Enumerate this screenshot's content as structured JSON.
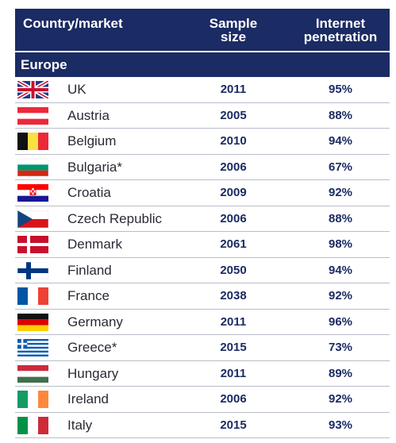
{
  "header": {
    "country_label": "Country/market",
    "sample_label_line1": "Sample",
    "sample_label_line2": "size",
    "internet_label_line1": "Internet",
    "internet_label_line2": "penetration"
  },
  "region": {
    "label": "Europe"
  },
  "rows": [
    {
      "flag": "uk-flag-icon",
      "country": "UK",
      "sample": "2011",
      "penetration": "95%"
    },
    {
      "flag": "austria-flag-icon",
      "country": "Austria",
      "sample": "2005",
      "penetration": "88%"
    },
    {
      "flag": "belgium-flag-icon",
      "country": "Belgium",
      "sample": "2010",
      "penetration": "94%"
    },
    {
      "flag": "bulgaria-flag-icon",
      "country": "Bulgaria*",
      "sample": "2006",
      "penetration": "67%"
    },
    {
      "flag": "croatia-flag-icon",
      "country": "Croatia",
      "sample": "2009",
      "penetration": "92%"
    },
    {
      "flag": "czech-flag-icon",
      "country": "Czech Republic",
      "sample": "2006",
      "penetration": "88%"
    },
    {
      "flag": "denmark-flag-icon",
      "country": "Denmark",
      "sample": "2061",
      "penetration": "98%"
    },
    {
      "flag": "finland-flag-icon",
      "country": "Finland",
      "sample": "2050",
      "penetration": "94%"
    },
    {
      "flag": "france-flag-icon",
      "country": "France",
      "sample": "2038",
      "penetration": "92%"
    },
    {
      "flag": "germany-flag-icon",
      "country": "Germany",
      "sample": "2011",
      "penetration": "96%"
    },
    {
      "flag": "greece-flag-icon",
      "country": "Greece*",
      "sample": "2015",
      "penetration": "73%"
    },
    {
      "flag": "hungary-flag-icon",
      "country": "Hungary",
      "sample": "2011",
      "penetration": "89%"
    },
    {
      "flag": "ireland-flag-icon",
      "country": "Ireland",
      "sample": "2006",
      "penetration": "92%"
    },
    {
      "flag": "italy-flag-icon",
      "country": "Italy",
      "sample": "2015",
      "penetration": "93%"
    }
  ],
  "colors": {
    "header_bg": "#1b2b63",
    "value_text": "#1b2b63",
    "row_divider": "#b9bdc9"
  }
}
